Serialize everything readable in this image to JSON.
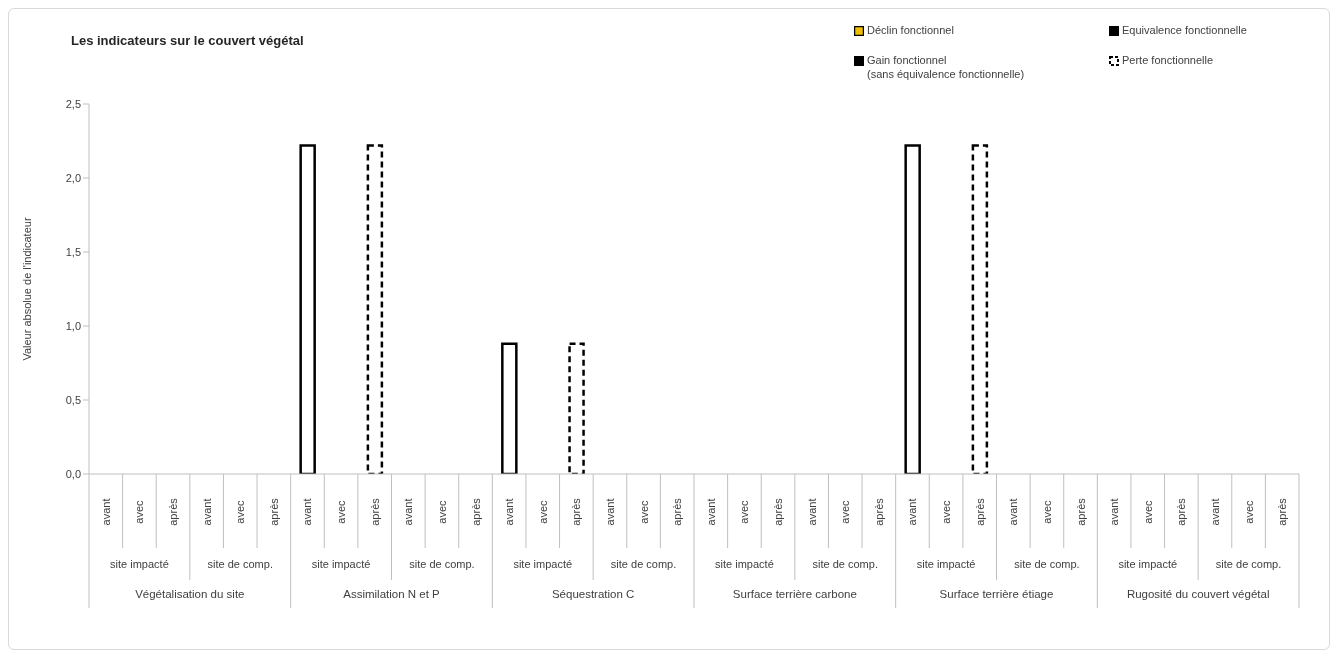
{
  "chart_data": {
    "type": "bar",
    "title": "Les indicateurs sur le couvert végétal",
    "ylabel": "Valeur absolue de l'indicateur",
    "categories": [
      "avant",
      "avec",
      "après",
      "avant",
      "avec",
      "après",
      "avant",
      "avec",
      "après",
      "avant",
      "avec",
      "après",
      "avant",
      "avec",
      "après",
      "avant",
      "avec",
      "après",
      "avant",
      "avec",
      "après",
      "avant",
      "avec",
      "après",
      "avant",
      "avec",
      "après",
      "avant",
      "avec",
      "après",
      "avant",
      "avec",
      "après",
      "avant",
      "avec",
      "après"
    ],
    "annotations": [
      "site impacté",
      "site de comp.",
      "site impacté",
      "site de comp.",
      "site impacté",
      "site de comp.",
      "site impacté",
      "site de comp.",
      "site impacté",
      "site de comp.",
      "site impacté",
      "site de comp.",
      "Végétalisation du site",
      "Assimilation N et P",
      "Séquestration C",
      "Surface terrière carbone",
      "Surface terrière étiage",
      "Rugosité du couvert végétal"
    ],
    "stacked": true,
    "series": [
      {
        "name": "Déclin fonctionnel",
        "color": "#f0c000",
        "values": [
          null,
          null,
          null,
          null,
          null,
          null,
          null,
          null,
          null,
          null,
          null,
          null,
          null,
          null,
          null,
          null,
          null,
          null,
          null,
          null,
          null,
          null,
          null,
          null,
          null,
          null,
          null,
          null,
          null,
          null,
          null,
          null,
          null,
          null,
          null,
          null
        ]
      },
      {
        "name": "Equivalence fonctionnelle",
        "color": "#000000",
        "values": [
          null,
          null,
          null,
          null,
          null,
          null,
          null,
          null,
          null,
          null,
          null,
          null,
          null,
          null,
          null,
          null,
          null,
          null,
          null,
          null,
          null,
          null,
          null,
          null,
          null,
          null,
          null,
          null,
          null,
          null,
          null,
          null,
          null,
          null,
          null,
          null
        ]
      },
      {
        "name": "Gain fonctionnel\n(sans équivalence fonctionnelle)",
        "color": "#000000",
        "values": [
          null,
          null,
          null,
          null,
          null,
          null,
          null,
          null,
          null,
          null,
          null,
          null,
          null,
          null,
          null,
          null,
          null,
          null,
          null,
          null,
          null,
          null,
          null,
          null,
          null,
          null,
          null,
          null,
          null,
          null,
          null,
          null,
          null,
          null,
          null,
          null
        ]
      },
      {
        "color": "#000000",
        "values": [
          null,
          null,
          null,
          null,
          null,
          null,
          2.22,
          null,
          null,
          null,
          null,
          null,
          0.88,
          null,
          null,
          null,
          null,
          null,
          null,
          null,
          null,
          null,
          null,
          null,
          2.22,
          null,
          null,
          null,
          null,
          null,
          null,
          null,
          null,
          null,
          null,
          null
        ]
      },
      {
        "name": "Perte fonctionnelle",
        "color": "#000000",
        "line_style": "dashed",
        "values": [
          null,
          null,
          null,
          null,
          null,
          null,
          null,
          null,
          2.22,
          null,
          null,
          null,
          null,
          null,
          0.88,
          null,
          null,
          null,
          null,
          null,
          null,
          null,
          null,
          null,
          null,
          null,
          2.22,
          null,
          null,
          null,
          null,
          null,
          null,
          null,
          null,
          null
        ]
      }
    ],
    "ylim": [
      0,
      2.5
    ],
    "yticks": [
      {
        "value": 0,
        "label": "0,0"
      },
      {
        "value": 0.5,
        "label": "0,5"
      },
      {
        "value": 1,
        "label": "1,0"
      },
      {
        "value": 1.5,
        "label": "1,5"
      },
      {
        "value": 2,
        "label": "2,0"
      },
      {
        "value": 2.5,
        "label": "2,5"
      }
    ],
    "grid": false,
    "legend": "top right"
  }
}
